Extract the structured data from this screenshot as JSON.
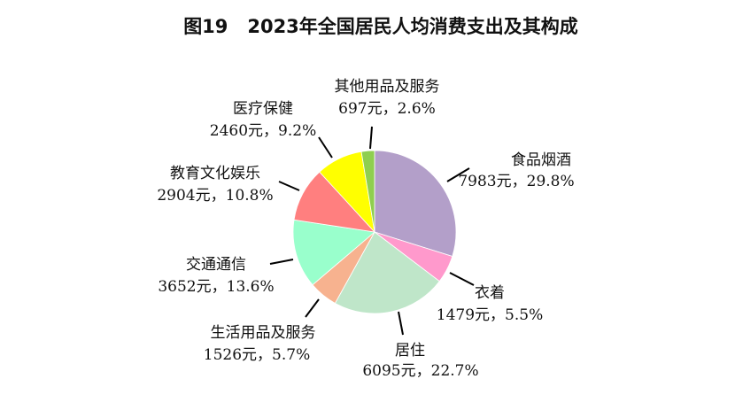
{
  "chart_data": {
    "type": "pie",
    "title": "图19   2023年全国居民人均消费支出及其构成",
    "start": "12 o'clock, clockwise",
    "slices": [
      {
        "name": "食品烟酒",
        "value": 7983,
        "label": "7983元，29.8%",
        "percent": 29.8,
        "color": "#b39fc9"
      },
      {
        "name": "衣着",
        "value": 1479,
        "label": "1479元，5.5%",
        "percent": 5.5,
        "color": "#ff99cc"
      },
      {
        "name": "居住",
        "value": 6095,
        "label": "6095元，22.7%",
        "percent": 22.7,
        "color": "#bfe6c9"
      },
      {
        "name": "生活用品及服务",
        "value": 1526,
        "label": "1526元，5.7%",
        "percent": 5.7,
        "color": "#f7b28f"
      },
      {
        "name": "交通通信",
        "value": 3652,
        "label": "3652元，13.6%",
        "percent": 13.6,
        "color": "#99ffcc"
      },
      {
        "name": "教育文化娱乐",
        "value": 2904,
        "label": "2904元，10.8%",
        "percent": 10.8,
        "color": "#ff7f7f"
      },
      {
        "name": "医疗保健",
        "value": 2460,
        "label": "2460元，9.2%",
        "percent": 9.2,
        "color": "#ffff00"
      },
      {
        "name": "其他用品及服务",
        "value": 697,
        "label": "697元，2.6%",
        "percent": 2.6,
        "color": "#8fcf4f"
      }
    ]
  }
}
